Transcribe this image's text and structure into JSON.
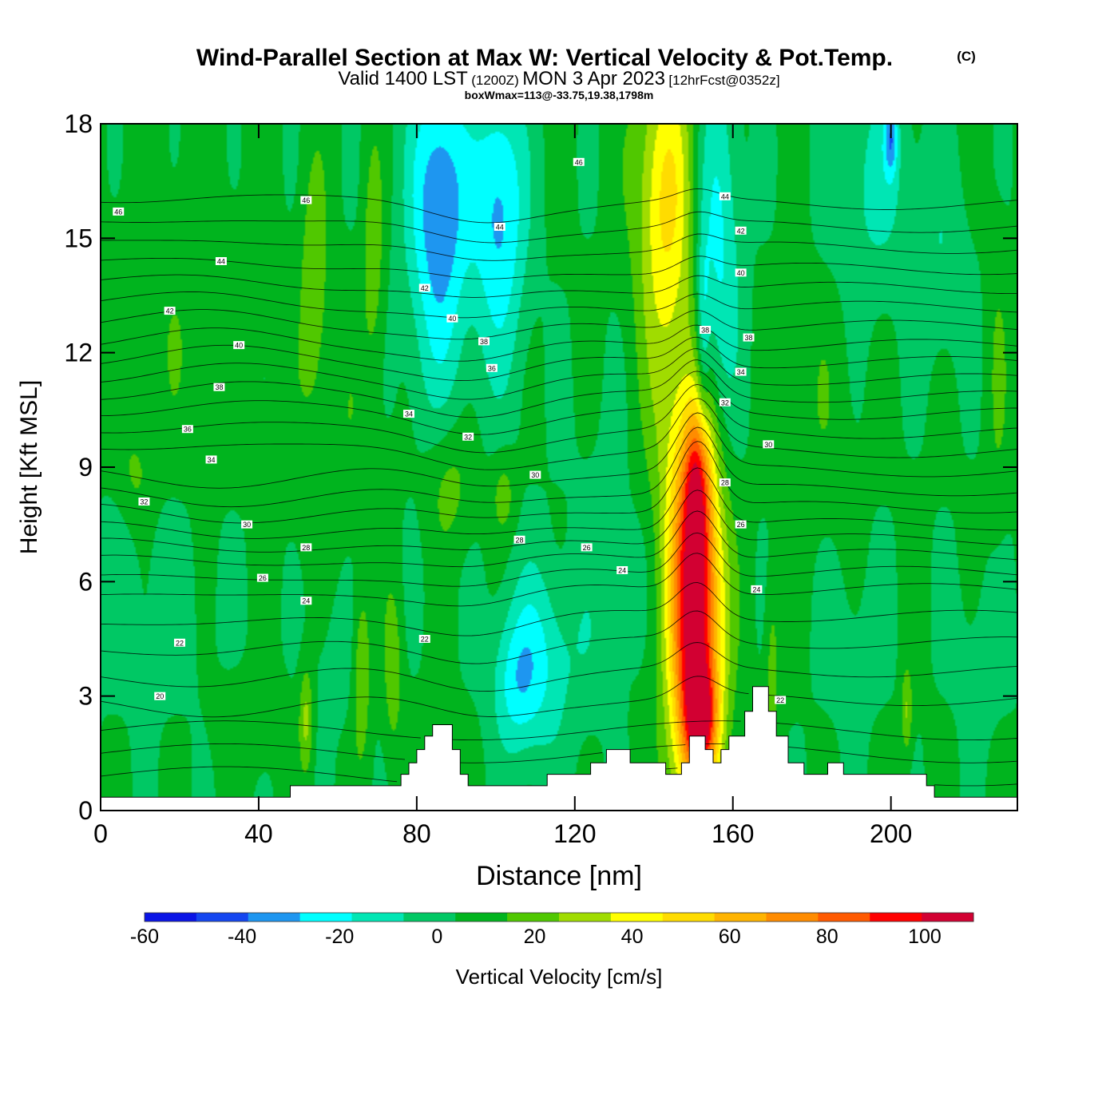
{
  "header": {
    "title": "Wind-Parallel Section at Max W: Vertical Velocity & Pot.Temp.",
    "copyright": "(C)",
    "valid_prefix": "Valid 1400 LST",
    "valid_utc": "(1200Z)",
    "valid_date": "MON 3 Apr 2023",
    "forecast": "[12hrFcst@0352z]",
    "boxmax": "boxWmax=113@-33.75,19.38,1798m"
  },
  "chart_data": {
    "type": "heatmap",
    "xlabel": "Distance [nm]",
    "ylabel": "Height [Kft MSL]",
    "xlim": [
      0,
      232
    ],
    "ylim": [
      0,
      18
    ],
    "x_ticks": [
      "0",
      "40",
      "80",
      "120",
      "160",
      "200"
    ],
    "x_tick_values": [
      0,
      40,
      80,
      120,
      160,
      200
    ],
    "y_ticks": [
      "0",
      "3",
      "6",
      "9",
      "12",
      "15",
      "18"
    ],
    "y_tick_values": [
      0,
      3,
      6,
      9,
      12,
      15,
      18
    ],
    "colorbar": {
      "label": "Vertical Velocity [cm/s]",
      "min": -60,
      "max": 110,
      "step": 10,
      "tick_labels": [
        "-60",
        "-40",
        "-20",
        "0",
        "20",
        "40",
        "60",
        "80",
        "100"
      ],
      "tick_values": [
        -60,
        -40,
        -20,
        0,
        20,
        40,
        60,
        80,
        100
      ],
      "colors": [
        "#0a14e6",
        "#1446f0",
        "#1e96f0",
        "#00ffff",
        "#00e6b4",
        "#00c864",
        "#00b41e",
        "#50c800",
        "#a0dc00",
        "#ffff00",
        "#ffdc00",
        "#ffb400",
        "#ff8c00",
        "#ff5a00",
        "#ff0000",
        "#d20032"
      ]
    },
    "terrain": [
      [
        0,
        0.35
      ],
      [
        10,
        0.35
      ],
      [
        40,
        0.35
      ],
      [
        48,
        0.35
      ],
      [
        48,
        0.65
      ],
      [
        76,
        0.65
      ],
      [
        76,
        0.95
      ],
      [
        78,
        0.95
      ],
      [
        78,
        1.25
      ],
      [
        80,
        1.25
      ],
      [
        80,
        1.6
      ],
      [
        82,
        1.6
      ],
      [
        82,
        1.95
      ],
      [
        84,
        1.95
      ],
      [
        84,
        2.25
      ],
      [
        89,
        2.25
      ],
      [
        89,
        1.6
      ],
      [
        91,
        1.6
      ],
      [
        91,
        0.95
      ],
      [
        93,
        0.95
      ],
      [
        93,
        0.65
      ],
      [
        113,
        0.65
      ],
      [
        113,
        0.95
      ],
      [
        124,
        0.95
      ],
      [
        124,
        1.25
      ],
      [
        128,
        1.25
      ],
      [
        128,
        1.6
      ],
      [
        134,
        1.6
      ],
      [
        134,
        1.25
      ],
      [
        143,
        1.25
      ],
      [
        143,
        0.95
      ],
      [
        147,
        0.95
      ],
      [
        147,
        1.25
      ],
      [
        149,
        1.25
      ],
      [
        149,
        1.95
      ],
      [
        153,
        1.95
      ],
      [
        153,
        1.6
      ],
      [
        155,
        1.6
      ],
      [
        155,
        1.25
      ],
      [
        157,
        1.25
      ],
      [
        157,
        1.6
      ],
      [
        159,
        1.6
      ],
      [
        159,
        1.95
      ],
      [
        163,
        1.95
      ],
      [
        163,
        2.6
      ],
      [
        165,
        2.6
      ],
      [
        165,
        3.25
      ],
      [
        169,
        3.25
      ],
      [
        169,
        2.6
      ],
      [
        171,
        2.6
      ],
      [
        171,
        1.95
      ],
      [
        174,
        1.95
      ],
      [
        174,
        1.25
      ],
      [
        178,
        1.25
      ],
      [
        178,
        0.95
      ],
      [
        184,
        0.95
      ],
      [
        184,
        1.25
      ],
      [
        188,
        1.25
      ],
      [
        188,
        0.95
      ],
      [
        209,
        0.95
      ],
      [
        209,
        0.65
      ],
      [
        211,
        0.65
      ],
      [
        211,
        0.35
      ],
      [
        232,
        0.35
      ]
    ],
    "isentropes": {
      "levels": [
        20,
        22,
        24,
        26,
        28,
        30,
        32,
        34,
        36,
        38,
        40,
        42,
        44,
        46
      ],
      "level_heights": [
        2.9,
        4.4,
        5.8,
        6.7,
        7.5,
        8.4,
        9.4,
        10.4,
        11.3,
        12.2,
        13.2,
        14.2,
        15.3,
        16.5
      ],
      "labels": [
        {
          "text": "46",
          "x": 4.5,
          "y": 15.7
        },
        {
          "text": "46",
          "x": 52,
          "y": 16.0
        },
        {
          "text": "46",
          "x": 121,
          "y": 17.0
        },
        {
          "text": "44",
          "x": 30.5,
          "y": 14.4
        },
        {
          "text": "44",
          "x": 101,
          "y": 15.3
        },
        {
          "text": "44",
          "x": 158,
          "y": 16.1
        },
        {
          "text": "42",
          "x": 17.5,
          "y": 13.1
        },
        {
          "text": "42",
          "x": 82,
          "y": 13.7
        },
        {
          "text": "42",
          "x": 162,
          "y": 15.2
        },
        {
          "text": "40",
          "x": 35,
          "y": 12.2
        },
        {
          "text": "40",
          "x": 89,
          "y": 12.9
        },
        {
          "text": "40",
          "x": 162,
          "y": 14.1
        },
        {
          "text": "38",
          "x": 30,
          "y": 11.1
        },
        {
          "text": "38",
          "x": 97,
          "y": 12.3
        },
        {
          "text": "38",
          "x": 153,
          "y": 12.6
        },
        {
          "text": "38",
          "x": 164,
          "y": 12.4
        },
        {
          "text": "36",
          "x": 22,
          "y": 10.0
        },
        {
          "text": "36",
          "x": 99,
          "y": 11.6
        },
        {
          "text": "34",
          "x": 28,
          "y": 9.2
        },
        {
          "text": "34",
          "x": 78,
          "y": 10.4
        },
        {
          "text": "34",
          "x": 162,
          "y": 11.5
        },
        {
          "text": "32",
          "x": 11,
          "y": 8.1
        },
        {
          "text": "32",
          "x": 93,
          "y": 9.8
        },
        {
          "text": "32",
          "x": 158,
          "y": 10.7
        },
        {
          "text": "30",
          "x": 37,
          "y": 7.5
        },
        {
          "text": "30",
          "x": 110,
          "y": 8.8
        },
        {
          "text": "30",
          "x": 169,
          "y": 9.6
        },
        {
          "text": "28",
          "x": 52,
          "y": 6.9
        },
        {
          "text": "28",
          "x": 106,
          "y": 7.1
        },
        {
          "text": "28",
          "x": 158,
          "y": 8.6
        },
        {
          "text": "26",
          "x": 41,
          "y": 6.1
        },
        {
          "text": "26",
          "x": 123,
          "y": 6.9
        },
        {
          "text": "26",
          "x": 162,
          "y": 7.5
        },
        {
          "text": "24",
          "x": 52,
          "y": 5.5
        },
        {
          "text": "24",
          "x": 132,
          "y": 6.3
        },
        {
          "text": "24",
          "x": 166,
          "y": 5.8
        },
        {
          "text": "22",
          "x": 20,
          "y": 4.4
        },
        {
          "text": "22",
          "x": 82,
          "y": 4.5
        },
        {
          "text": "22",
          "x": 172,
          "y": 2.9
        },
        {
          "text": "20",
          "x": 15,
          "y": 3.0
        }
      ]
    },
    "blobs": [
      {
        "x": 150.5,
        "y": 5.2,
        "sx": 4.6,
        "sy": 3.6,
        "w": 104
      },
      {
        "x": 151,
        "y": 8.6,
        "sx": 2.2,
        "sy": 1.3,
        "w": 35
      },
      {
        "x": 152,
        "y": 2.4,
        "sx": 2.8,
        "sy": 0.9,
        "w": 45
      },
      {
        "x": 143,
        "y": 16.4,
        "sx": 5.5,
        "sy": 2.7,
        "w": 35
      },
      {
        "x": 143,
        "y": 11.4,
        "sx": 4.5,
        "sy": 3.5,
        "w": 14
      },
      {
        "x": 156,
        "y": 14.6,
        "sx": 4,
        "sy": 3.6,
        "w": -26
      },
      {
        "x": 152.5,
        "y": 12.4,
        "sx": 1.2,
        "sy": 2,
        "w": -20
      },
      {
        "x": 86,
        "y": 16.2,
        "sx": 5,
        "sy": 2.4,
        "w": -32
      },
      {
        "x": 85,
        "y": 13.2,
        "sx": 6,
        "sy": 3.6,
        "w": -14
      },
      {
        "x": 101,
        "y": 16.2,
        "sx": 4.5,
        "sy": 2.3,
        "w": -28
      },
      {
        "x": 101,
        "y": 13.5,
        "sx": 5.5,
        "sy": 2.6,
        "w": -10
      },
      {
        "x": 110,
        "y": 3.9,
        "sx": 6.5,
        "sy": 1.8,
        "w": -22
      },
      {
        "x": 105,
        "y": 3.3,
        "sx": 4,
        "sy": 1.2,
        "w": -15
      },
      {
        "x": 125,
        "y": 4.3,
        "sx": 6,
        "sy": 1.6,
        "w": -6
      },
      {
        "x": 60,
        "y": 4.2,
        "sx": 5.5,
        "sy": 1.6,
        "w": -6
      },
      {
        "x": 66,
        "y": 3.6,
        "sx": 1.6,
        "sy": 1.6,
        "w": 20
      },
      {
        "x": 52,
        "y": 2.4,
        "sx": 1.2,
        "sy": 1,
        "w": 22
      },
      {
        "x": 74,
        "y": 3.7,
        "sx": 1.6,
        "sy": 1.5,
        "w": 16
      },
      {
        "x": 54,
        "y": 14,
        "sx": 2.4,
        "sy": 2.2,
        "w": 16
      },
      {
        "x": 69,
        "y": 14.6,
        "sx": 1.8,
        "sy": 2,
        "w": 16
      },
      {
        "x": 88,
        "y": 8.6,
        "sx": 4.5,
        "sy": 1.3,
        "w": 16
      },
      {
        "x": 102,
        "y": 8.3,
        "sx": 2.2,
        "sy": 0.8,
        "w": 14
      },
      {
        "x": 170,
        "y": 3.8,
        "sx": 1.2,
        "sy": 1.6,
        "w": 14
      },
      {
        "x": 204,
        "y": 2.6,
        "sx": 1,
        "sy": 0.8,
        "w": 20
      },
      {
        "x": 9,
        "y": 8.8,
        "sx": 3,
        "sy": 0.9,
        "w": 10
      },
      {
        "x": 20,
        "y": 12.6,
        "sx": 15,
        "sy": 3.2,
        "w": 6
      },
      {
        "x": 12,
        "y": 5.6,
        "sx": 15,
        "sy": 2.4,
        "w": -6
      },
      {
        "x": 195,
        "y": 16.4,
        "sx": 8,
        "sy": 2.2,
        "w": -14
      },
      {
        "x": 213,
        "y": 14.2,
        "sx": 5,
        "sy": 1.8,
        "w": -10
      },
      {
        "x": 200,
        "y": 17.6,
        "sx": 1.2,
        "sy": 0.7,
        "w": -30
      },
      {
        "x": 190,
        "y": 4.4,
        "sx": 6.5,
        "sy": 1.8,
        "w": -6
      },
      {
        "x": 223,
        "y": 4.2,
        "sx": 6,
        "sy": 1.8,
        "w": -6
      },
      {
        "x": 60,
        "y": 9.4,
        "sx": 9,
        "sy": 2.4,
        "w": 6
      },
      {
        "x": 37,
        "y": 2.3,
        "sx": 5.5,
        "sy": 0.9,
        "w": 8
      },
      {
        "x": 126,
        "y": 9.2,
        "sx": 7,
        "sy": 2,
        "w": -3
      },
      {
        "x": 134,
        "y": 6.4,
        "sx": 5,
        "sy": 1.5,
        "w": -4
      },
      {
        "x": 182,
        "y": 10.5,
        "sx": 6,
        "sy": 2.5,
        "w": 6
      },
      {
        "x": 227,
        "y": 11.2,
        "sx": 2,
        "sy": 3,
        "w": 8
      }
    ]
  }
}
